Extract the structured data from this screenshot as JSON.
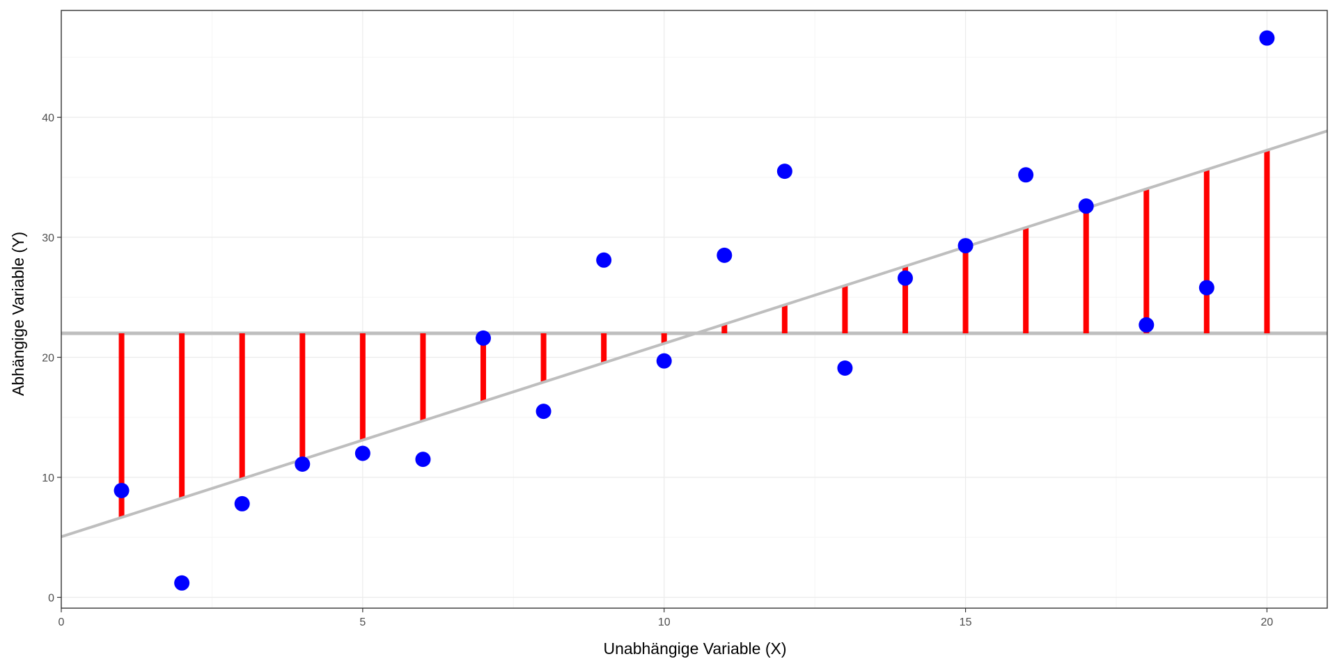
{
  "chart_data": {
    "type": "scatter",
    "title": "",
    "xlabel": "Unabhängige Variable (X)",
    "ylabel": "Abhängige Variable (Y)",
    "xlim": [
      0,
      21
    ],
    "ylim": [
      -0.9,
      48.9
    ],
    "x_ticks": [
      0,
      5,
      10,
      15,
      20
    ],
    "y_ticks": [
      0,
      10,
      20,
      30,
      40
    ],
    "x_tick_labels": [
      "0",
      "5",
      "10",
      "15",
      "20"
    ],
    "y_tick_labels": [
      "0",
      "10",
      "20",
      "30",
      "40"
    ],
    "grid": true,
    "colors": {
      "points": "#0000ff",
      "residual_segments": "#ff0000",
      "regression_line": "#bebebe",
      "mean_line": "#bebebe",
      "panel_border": "#333333",
      "grid_major": "#ebebeb",
      "grid_minor": "#f5f5f5"
    },
    "mean_y": 22,
    "regression": {
      "intercept": 5.05,
      "slope": 1.61
    },
    "points": [
      {
        "x": 1,
        "y": 8.9
      },
      {
        "x": 2,
        "y": 1.2
      },
      {
        "x": 3,
        "y": 7.8
      },
      {
        "x": 4,
        "y": 11.1
      },
      {
        "x": 5,
        "y": 12.0
      },
      {
        "x": 6,
        "y": 11.5
      },
      {
        "x": 7,
        "y": 21.6
      },
      {
        "x": 8,
        "y": 15.5
      },
      {
        "x": 9,
        "y": 28.1
      },
      {
        "x": 10,
        "y": 19.7
      },
      {
        "x": 11,
        "y": 28.5
      },
      {
        "x": 12,
        "y": 35.5
      },
      {
        "x": 13,
        "y": 19.1
      },
      {
        "x": 14,
        "y": 26.6
      },
      {
        "x": 15,
        "y": 29.3
      },
      {
        "x": 16,
        "y": 35.2
      },
      {
        "x": 17,
        "y": 32.6
      },
      {
        "x": 18,
        "y": 22.7
      },
      {
        "x": 19,
        "y": 25.8
      },
      {
        "x": 20,
        "y": 46.6
      }
    ]
  }
}
